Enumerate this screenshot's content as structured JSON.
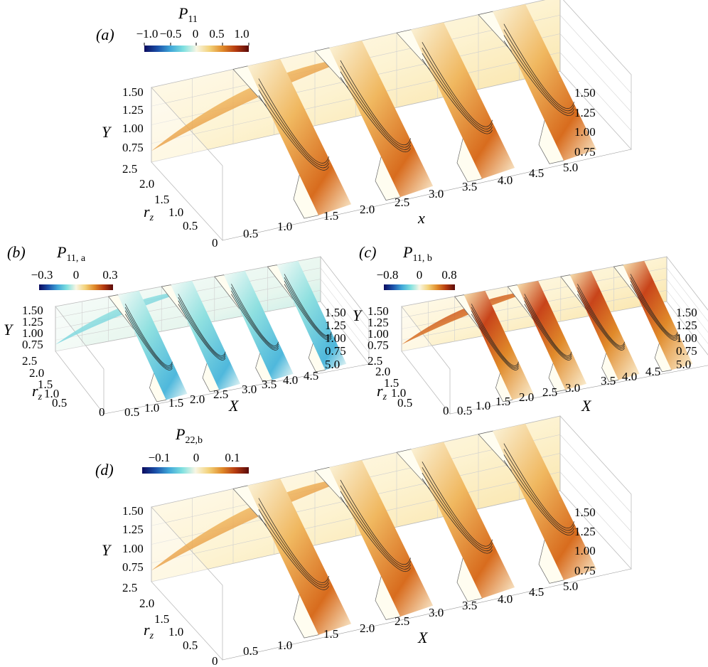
{
  "panels": [
    {
      "id": "a",
      "panel_label": "(a)",
      "colorbar": {
        "symbol": "P",
        "subscript": "11",
        "ticks": [
          "−1.0",
          "−0.5",
          "0",
          "0.5",
          "1.0"
        ]
      },
      "y_axis": {
        "label": "Y",
        "ticks": [
          "1.50",
          "1.25",
          "1.00",
          "0.75"
        ]
      },
      "y_axis_right": {
        "ticks": [
          "1.50",
          "1.25",
          "1.00",
          "0.75"
        ]
      },
      "rz_axis": {
        "symbol": "r",
        "subscript": "z",
        "ticks": [
          "2.5",
          "2.0",
          "1.5",
          "1.0",
          "0.5",
          "0"
        ]
      },
      "x_axis": {
        "label": "x",
        "ticks": [
          "0.5",
          "1.0",
          "1.5",
          "2.0",
          "2.5",
          "3.0",
          "3.5",
          "4.0",
          "4.5",
          "5.0"
        ]
      }
    },
    {
      "id": "b",
      "panel_label": "(b)",
      "colorbar": {
        "symbol": "P",
        "subscript": "11, a",
        "ticks": [
          "−0.3",
          "0",
          "0.3"
        ]
      },
      "y_axis": {
        "label": "Y",
        "ticks": [
          "1.50",
          "1.25",
          "1.00",
          "0.75"
        ]
      },
      "y_axis_right": {
        "ticks": [
          "1.50",
          "1.25",
          "1.00",
          "0.75"
        ]
      },
      "rz_axis": {
        "symbol": "r",
        "subscript": "z",
        "ticks": [
          "2.5",
          "2.0",
          "1.5",
          "1.0",
          "0.5",
          "0"
        ]
      },
      "x_axis": {
        "label": "X",
        "ticks": [
          "0.5",
          "1.0",
          "1.5",
          "2.0",
          "2.5",
          "3.0",
          "3.5",
          "4.0",
          "4.5",
          "5.0"
        ]
      }
    },
    {
      "id": "c",
      "panel_label": "(c)",
      "colorbar": {
        "symbol": "P",
        "subscript": "11, b",
        "ticks": [
          "−0.8",
          "0",
          "0.8"
        ]
      },
      "y_axis": {
        "label": "Y",
        "ticks": [
          "1.50",
          "1.25",
          "1.00",
          "0.75"
        ]
      },
      "y_axis_right": {
        "ticks": [
          "1.50",
          "1.25",
          "1.00",
          "0.75"
        ]
      },
      "rz_axis": {
        "symbol": "r",
        "subscript": "z",
        "ticks": [
          "2.5",
          "2.0",
          "1.5",
          "1.0",
          "0.5",
          "0"
        ]
      },
      "x_axis": {
        "label": "X",
        "ticks": [
          "0.5",
          "1.0",
          "1.5",
          "2.0",
          "2.5",
          "3.0",
          "3.5",
          "4.0",
          "4.5",
          "5.0"
        ]
      }
    },
    {
      "id": "d",
      "panel_label": "(d)",
      "colorbar": {
        "symbol": "P",
        "subscript": "22,b",
        "ticks": [
          "−0.1",
          "0",
          "0.1"
        ]
      },
      "y_axis": {
        "label": "Y",
        "ticks": [
          "1.50",
          "1.25",
          "1.00",
          "0.75"
        ]
      },
      "y_axis_right": {
        "ticks": [
          "1.50",
          "1.25",
          "1.00",
          "0.75"
        ]
      },
      "rz_axis": {
        "symbol": "r",
        "subscript": "z",
        "ticks": [
          "2.5",
          "2.0",
          "1.5",
          "1.0",
          "0.5",
          "0"
        ]
      },
      "x_axis": {
        "label": "X",
        "ticks": [
          "0.5",
          "1.0",
          "1.5",
          "2.0",
          "2.5",
          "3.0",
          "3.5",
          "4.0",
          "4.5",
          "5.0"
        ]
      }
    }
  ],
  "colormap": [
    "#0b0b5e",
    "#1a4fa8",
    "#3fa6d8",
    "#7fe0e0",
    "#f8f6e4",
    "#f3d27a",
    "#e08a2a",
    "#b53a10",
    "#5a0a0a"
  ]
}
